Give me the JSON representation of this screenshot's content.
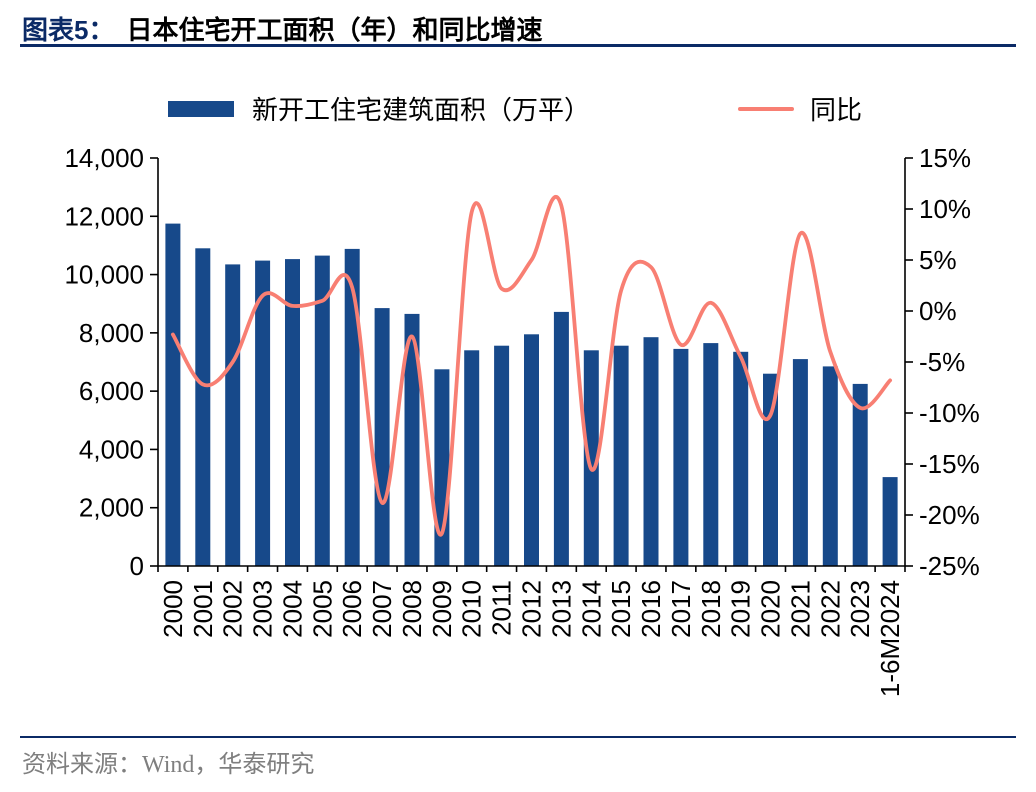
{
  "figure": {
    "label": "图表5：",
    "title": "日本住宅开工面积（年）和同比增速",
    "source": "资料来源：Wind，华泰研究"
  },
  "legend": {
    "bars": "新开工住宅建筑面积（万平）",
    "line": "同比"
  },
  "colors": {
    "bar": "#17498A",
    "line": "#F87F73",
    "accent": "#0B2A66",
    "source_text": "#7F7F7F"
  },
  "chart_data": {
    "type": "bar",
    "title": "日本住宅开工面积（年）和同比增速",
    "legend_position": "top",
    "grid": false,
    "categories": [
      "2000",
      "2001",
      "2002",
      "2003",
      "2004",
      "2005",
      "2006",
      "2007",
      "2008",
      "2009",
      "2010",
      "2011",
      "2012",
      "2013",
      "2014",
      "2015",
      "2016",
      "2017",
      "2018",
      "2019",
      "2020",
      "2021",
      "2022",
      "2023",
      "1-6M2024"
    ],
    "series": [
      {
        "name": "新开工住宅建筑面积（万平）",
        "type": "bar",
        "axis": "left",
        "values": [
          11750,
          10900,
          10350,
          10480,
          10530,
          10650,
          10880,
          8850,
          8650,
          6750,
          7400,
          7560,
          7950,
          8720,
          7400,
          7560,
          7850,
          7450,
          7650,
          7350,
          6600,
          7100,
          6850,
          6250,
          3050
        ]
      },
      {
        "name": "同比",
        "type": "line",
        "axis": "right",
        "unit": "%",
        "values": [
          -2.3,
          -7.2,
          -5.0,
          1.5,
          0.5,
          1.0,
          2.3,
          -18.8,
          -2.5,
          -21.8,
          9.7,
          2.2,
          5.0,
          10.3,
          -15.5,
          2.0,
          4.3,
          -3.3,
          0.8,
          -4.5,
          -10.2,
          7.6,
          -4.0,
          -9.5,
          -6.8
        ]
      }
    ],
    "left_axis": {
      "min": 0,
      "max": 14000,
      "step": 2000,
      "tick_labels": [
        "0",
        "2,000",
        "4,000",
        "6,000",
        "8,000",
        "10,000",
        "12,000",
        "14,000"
      ]
    },
    "right_axis": {
      "min": -25,
      "max": 15,
      "step": 5,
      "unit": "%",
      "tick_labels": [
        "-25%",
        "-20%",
        "-15%",
        "-10%",
        "-5%",
        "0%",
        "5%",
        "10%",
        "15%"
      ]
    }
  }
}
